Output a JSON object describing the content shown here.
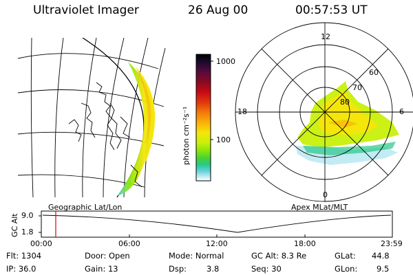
{
  "header": {
    "instrument": "Ultraviolet Imager",
    "date": "26 Aug 00",
    "time": "00:57:53 UT"
  },
  "colorbar": {
    "unit_label": "photon cm⁻²s⁻¹",
    "ticks": [
      "1000",
      "100"
    ],
    "colors": [
      "#000000",
      "#1a0a30",
      "#5a0a3c",
      "#8a0a22",
      "#c80a14",
      "#e2380a",
      "#f4780a",
      "#fbb00a",
      "#f4e60a",
      "#c8f00a",
      "#8ce60a",
      "#4ad232",
      "#28c888",
      "#5ad2d8",
      "#b4e6f0",
      "#ffffff"
    ]
  },
  "left_panel": {
    "label": "Geographic Lat/Lon"
  },
  "polar_plot": {
    "label": "Apex MLat/MLT",
    "mlt_labels": {
      "top": "12",
      "left": "18",
      "right": "6",
      "bottom": "0"
    },
    "lat_labels": [
      "60",
      "70",
      "80"
    ]
  },
  "timeline": {
    "ylabel": "GC Alt",
    "y_ticks": [
      "9.0",
      "1.8"
    ],
    "x_ticks": [
      "00:00",
      "06:00",
      "12:00",
      "18:00",
      "23:59"
    ],
    "marker_color": "#dd0000"
  },
  "info": {
    "flt": "Flt: 1304",
    "ip": "IP: 36.0",
    "door": "Door: Open",
    "gain": "Gain: 13",
    "mode": "Mode: Normal",
    "dsp_label": "Dsp:",
    "dsp_value": "3.8",
    "gc_alt": "GC Alt: 8.3 Re",
    "seq": "Seq: 30",
    "glat": "GLat:",
    "glat_value": "44.8",
    "glon": "GLon:",
    "glon_value": "9.5"
  }
}
